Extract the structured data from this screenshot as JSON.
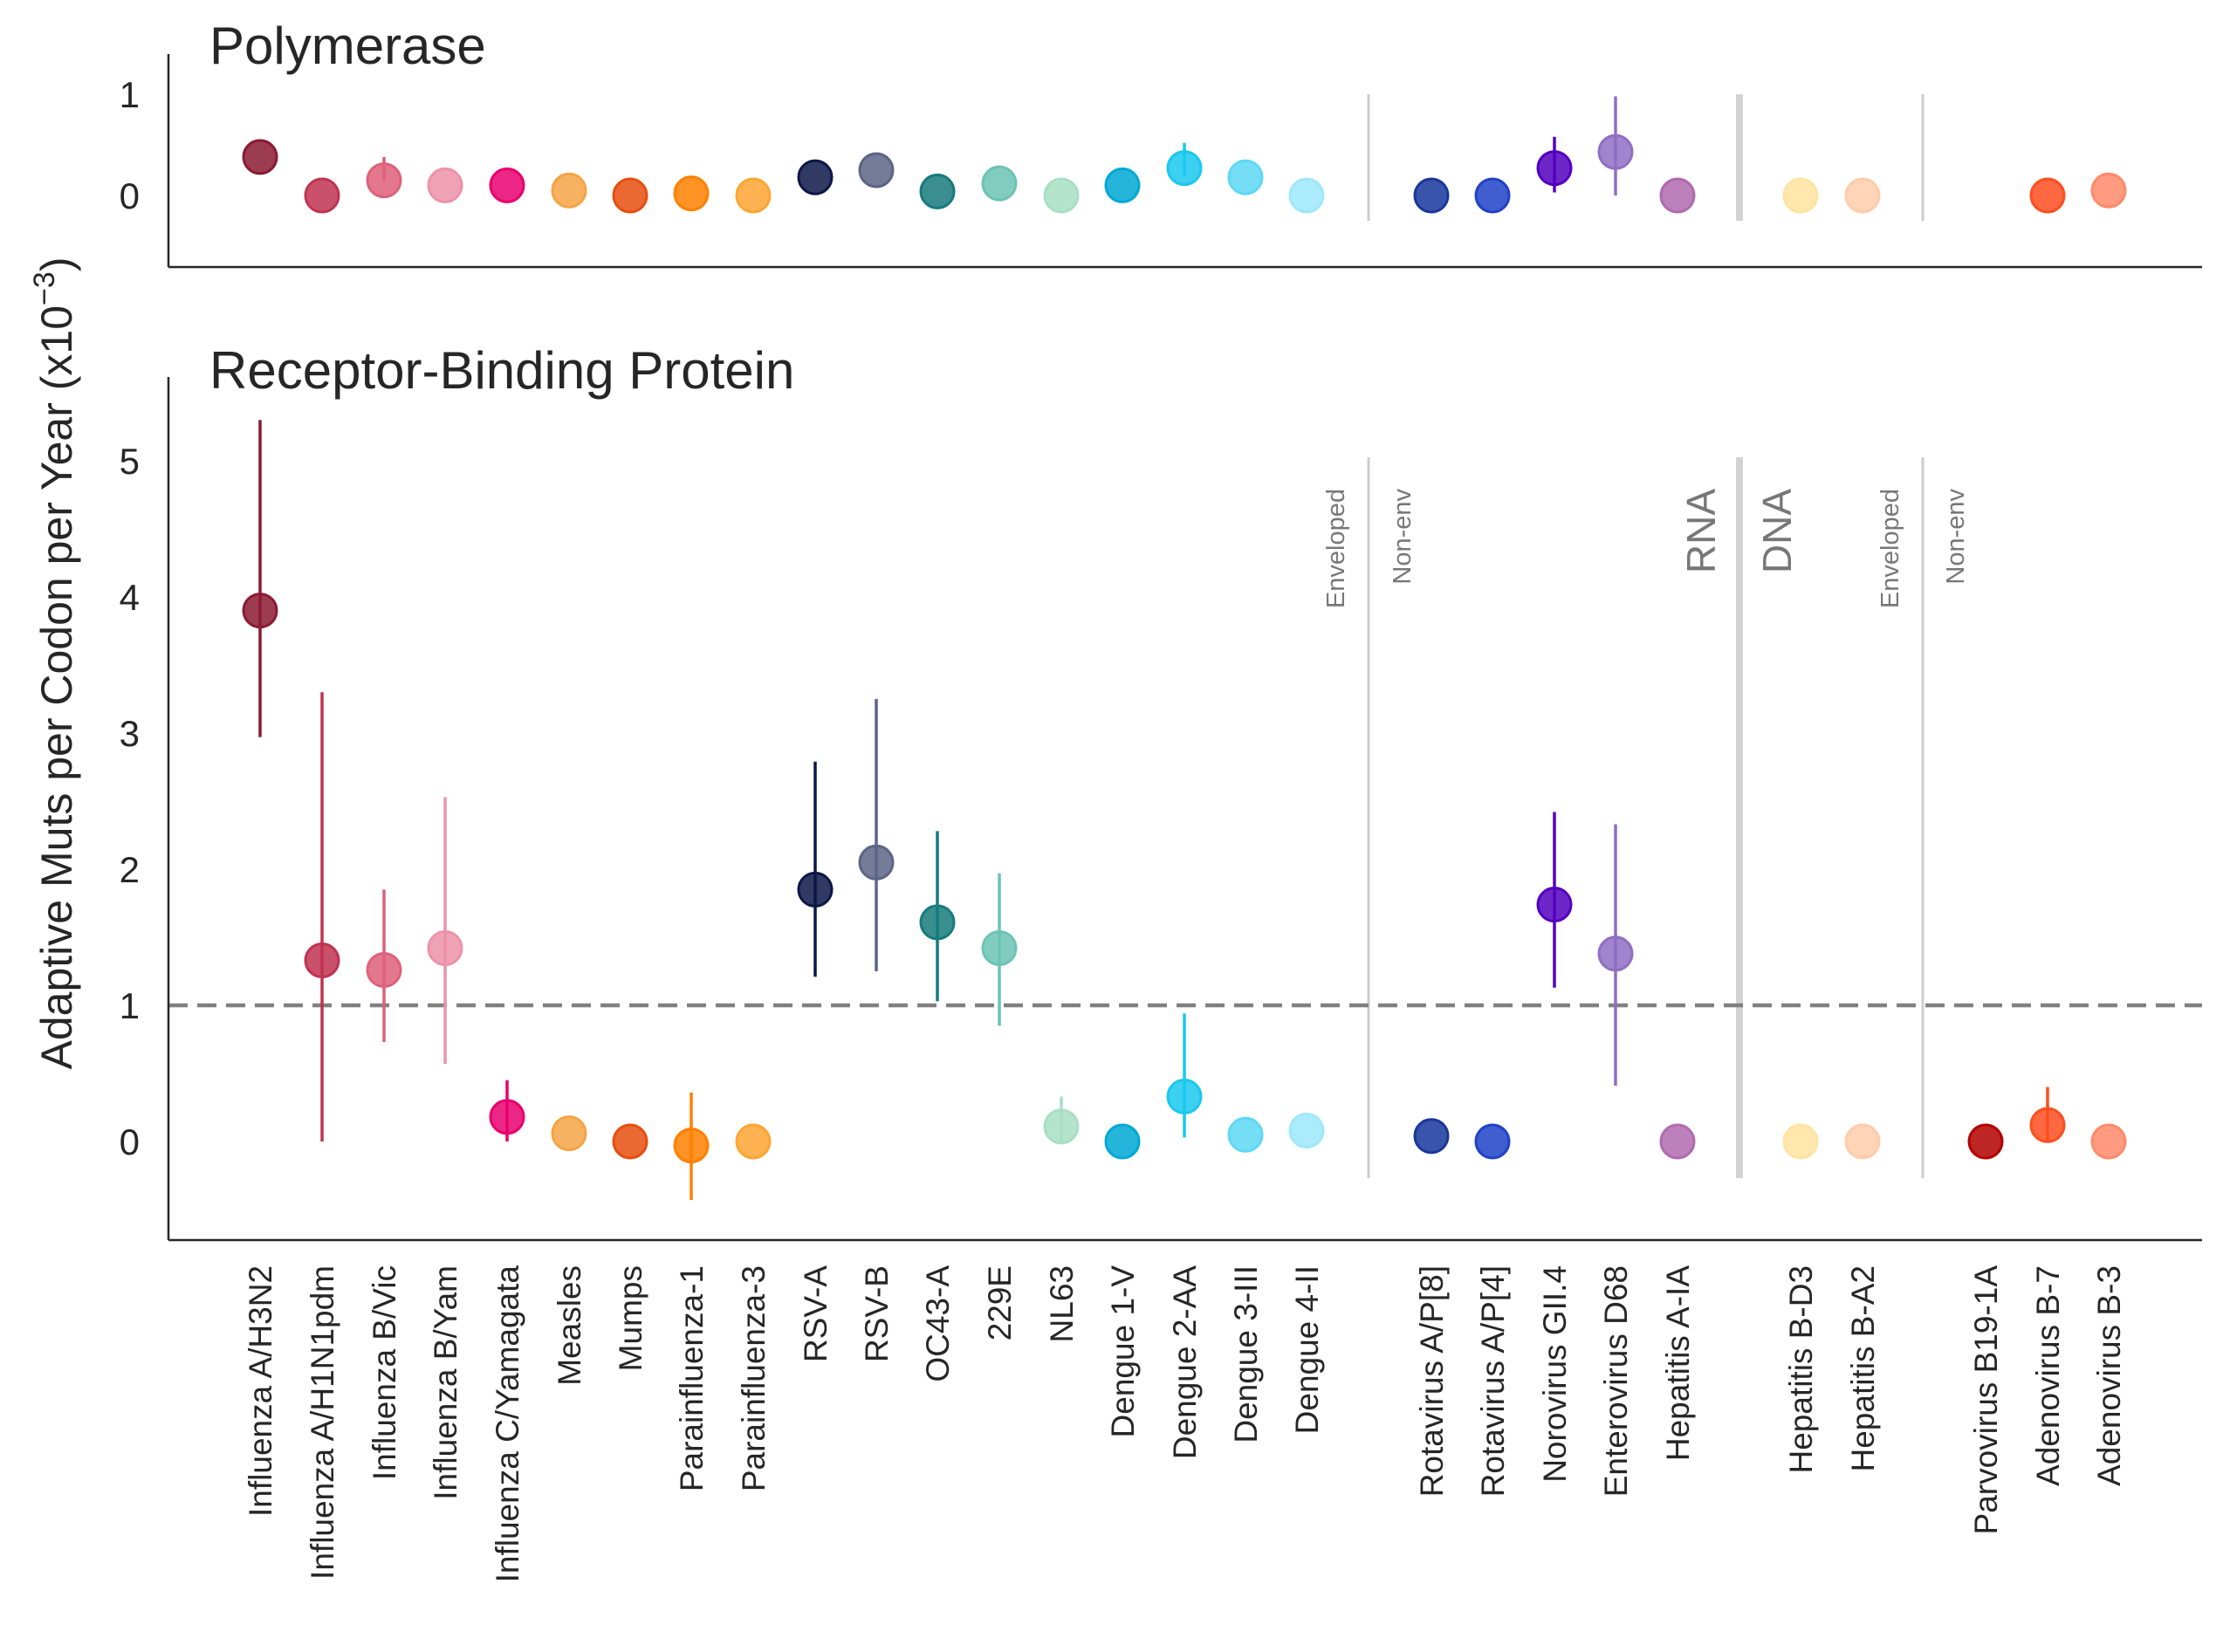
{
  "chart_data": {
    "type": "scatter",
    "ylabel": "Adaptive Muts per Codon per Year (x10$^{-3}$)",
    "ylabel_display": "Adaptive Muts per Codon per Year (x10",
    "ylabel_exponent": "−3",
    "ylabel_close": ")",
    "categories": [
      "Influenza A/H3N2",
      "Influenza A/H1N1pdm",
      "Influenza B/Vic",
      "Influenza B/Yam",
      "Influenza C/Yamagata",
      "Measles",
      "Mumps",
      "Parainfluenza-1",
      "Parainfluenza-3",
      "RSV-A",
      "RSV-B",
      "OC43-A",
      "229E",
      "NL63",
      "Dengue 1-V",
      "Dengue 2-AA",
      "Dengue 3-III",
      "Dengue 4-II",
      "Rotavirus A/P[8]",
      "Rotavirus A/P[4]",
      "Norovirus GII.4",
      "Enterovirus D68",
      "Hepatitis A-IA",
      "Hepatitis B-D3",
      "Hepatitis B-A2",
      "Parvovirus B19-1A",
      "Adenovirus B-7",
      "Adenovirus B-3"
    ],
    "colors": [
      "#8B1A32",
      "#C0334F",
      "#DE6079",
      "#EC92A8",
      "#E8006E",
      "#F4A444",
      "#E64D0E",
      "#FF8000",
      "#FFA533",
      "#0C1746",
      "#5C6585",
      "#177A7C",
      "#6CC3B4",
      "#A8DFC4",
      "#00A8D4",
      "#1AC8EE",
      "#5DD8F4",
      "#9EE7FA",
      "#19369C",
      "#1F42C8",
      "#5300BE",
      "#8F6EC4",
      "#B06AAE",
      "#FFE3A0",
      "#FFCCAA",
      "#B30000",
      "#FF4E1F",
      "#FF8A6A"
    ],
    "panels": [
      {
        "title": "Polymerase",
        "ylim": [
          -0.75,
          1.4
        ],
        "yticks": [
          "0",
          "1"
        ],
        "values": [
          0.38,
          0.0,
          0.15,
          0.1,
          0.1,
          0.05,
          0.0,
          0.02,
          0.0,
          0.18,
          0.25,
          0.04,
          0.12,
          0.0,
          0.1,
          0.27,
          0.18,
          0.0,
          0.0,
          0.0,
          0.27,
          0.43,
          0.0,
          0.0,
          0.0,
          null,
          0.0,
          0.05
        ],
        "errors": [
          null,
          null,
          [
            0.15,
            0.38
          ],
          null,
          null,
          null,
          null,
          null,
          null,
          null,
          null,
          null,
          null,
          null,
          null,
          [
            0.2,
            0.52
          ],
          null,
          null,
          null,
          null,
          [
            0.03,
            0.58
          ],
          [
            0.0,
            0.98
          ],
          null,
          null,
          null,
          null,
          null,
          null
        ],
        "reference_line": null
      },
      {
        "title": "Receptor-Binding Protein",
        "ylim": [
          -0.75,
          5.6
        ],
        "yticks": [
          "0",
          "1",
          "2",
          "3",
          "4",
          "5"
        ],
        "values": [
          3.9,
          1.33,
          1.26,
          1.42,
          0.18,
          0.06,
          0.0,
          -0.03,
          0.0,
          1.85,
          2.05,
          1.61,
          1.42,
          0.11,
          0.0,
          0.33,
          0.05,
          0.08,
          0.04,
          0.0,
          1.74,
          1.38,
          0.0,
          0.0,
          0.0,
          0.0,
          0.12,
          0.0
        ],
        "errors": [
          [
            2.97,
            5.3
          ],
          [
            0.0,
            3.3
          ],
          [
            0.73,
            1.85
          ],
          [
            0.57,
            2.53
          ],
          [
            0.0,
            0.45
          ],
          null,
          null,
          [
            -0.43,
            0.36
          ],
          null,
          [
            1.21,
            2.79
          ],
          [
            1.25,
            3.25
          ],
          [
            1.03,
            2.28
          ],
          [
            0.85,
            1.97
          ],
          [
            0.0,
            0.33
          ],
          null,
          [
            0.03,
            0.94
          ],
          null,
          null,
          null,
          null,
          [
            1.13,
            2.42
          ],
          [
            0.41,
            2.33
          ],
          null,
          null,
          null,
          null,
          [
            0.0,
            0.4
          ],
          null
        ],
        "reference_line": 1.0
      }
    ],
    "group_labels": {
      "enveloped": "Enveloped",
      "nonenv": "Non-env",
      "rna": "RNA",
      "dna": "DNA"
    }
  }
}
